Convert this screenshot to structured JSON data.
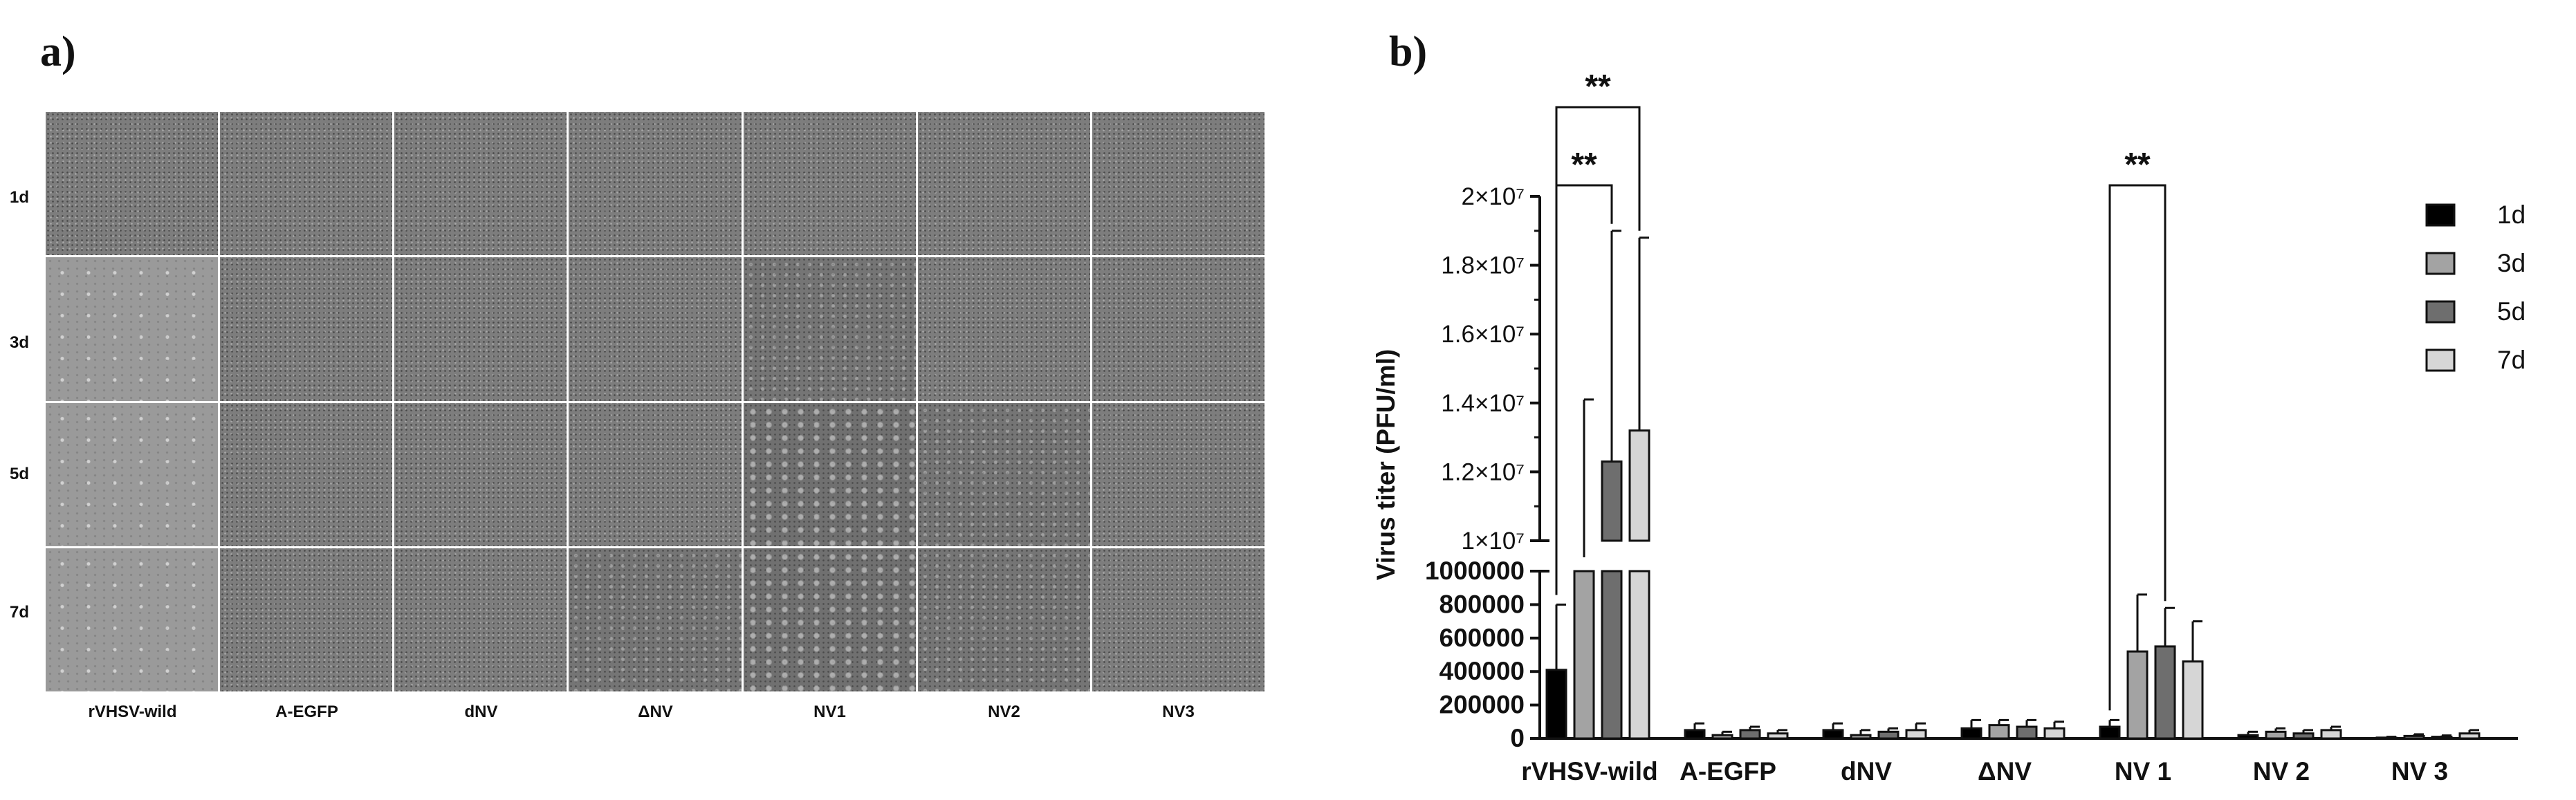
{
  "panel_a": {
    "letter": "a)",
    "row_labels": [
      "1d",
      "3d",
      "5d",
      "7d"
    ],
    "column_labels": [
      "rVHSV-wild",
      "A-EGFP",
      "dNV",
      "ΔNV",
      "NV1",
      "NV2",
      "NV3"
    ],
    "cell_appearance": [
      [
        "confluent",
        "confluent",
        "confluent",
        "confluent",
        "confluent",
        "confluent",
        "confluent"
      ],
      [
        "clear",
        "confluent",
        "confluent",
        "confluent",
        "mild",
        "confluent",
        "confluent"
      ],
      [
        "clear",
        "confluent",
        "confluent",
        "confluent",
        "plaque",
        "mild",
        "confluent"
      ],
      [
        "clear",
        "confluent",
        "confluent",
        "mild",
        "plaque",
        "mild",
        "confluent"
      ]
    ]
  },
  "panel_b": {
    "letter": "b)"
  },
  "chart_data": {
    "type": "bar",
    "ylabel": "Virus titer (PFU/ml)",
    "categories": [
      "rVHSV-wild",
      "A-EGFP",
      "dNV",
      "ΔNV",
      "NV 1",
      "NV 2",
      "NV 3"
    ],
    "axis_break": {
      "lower_range": [
        0,
        1000000
      ],
      "upper_range": [
        10000000,
        20000000
      ]
    },
    "y_ticks_lower": [
      "0",
      "200000",
      "400000",
      "600000",
      "800000",
      "1000000"
    ],
    "y_ticks_upper": [
      "1×10⁷",
      "1.2×10⁷",
      "1.4×10⁷",
      "1.6×10⁷",
      "1.8×10⁷",
      "2×10⁷"
    ],
    "y_ticks_upper_values": [
      10000000,
      12000000,
      14000000,
      16000000,
      18000000,
      20000000
    ],
    "legend_position": "right",
    "series": [
      {
        "name": "1d",
        "color": "#000000",
        "values": [
          410000,
          50000,
          50000,
          60000,
          70000,
          20000,
          5000
        ],
        "errors": [
          390000,
          40000,
          40000,
          50000,
          40000,
          20000,
          5000
        ]
      },
      {
        "name": "3d",
        "color": "#a3a3a3",
        "values": [
          8500000,
          20000,
          20000,
          80000,
          520000,
          40000,
          15000
        ],
        "errors": [
          5600000,
          20000,
          30000,
          30000,
          340000,
          20000,
          10000
        ]
      },
      {
        "name": "5d",
        "color": "#6e6e6e",
        "values": [
          12300000,
          50000,
          40000,
          70000,
          550000,
          30000,
          10000
        ],
        "errors": [
          6700000,
          20000,
          20000,
          40000,
          230000,
          20000,
          8000
        ]
      },
      {
        "name": "7d",
        "color": "#d6d6d6",
        "values": [
          13200000,
          30000,
          50000,
          60000,
          460000,
          50000,
          30000
        ],
        "errors": [
          5600000,
          20000,
          40000,
          40000,
          240000,
          20000,
          20000
        ]
      }
    ],
    "significance": [
      {
        "label": "**",
        "category": "rVHSV-wild",
        "from_series": "1d",
        "to_series": "7d"
      },
      {
        "label": "**",
        "category": "rVHSV-wild",
        "from_series": "1d",
        "to_series": "5d"
      },
      {
        "label": "**",
        "category": "NV 1",
        "from_series": "1d",
        "to_series": "5d"
      }
    ]
  }
}
